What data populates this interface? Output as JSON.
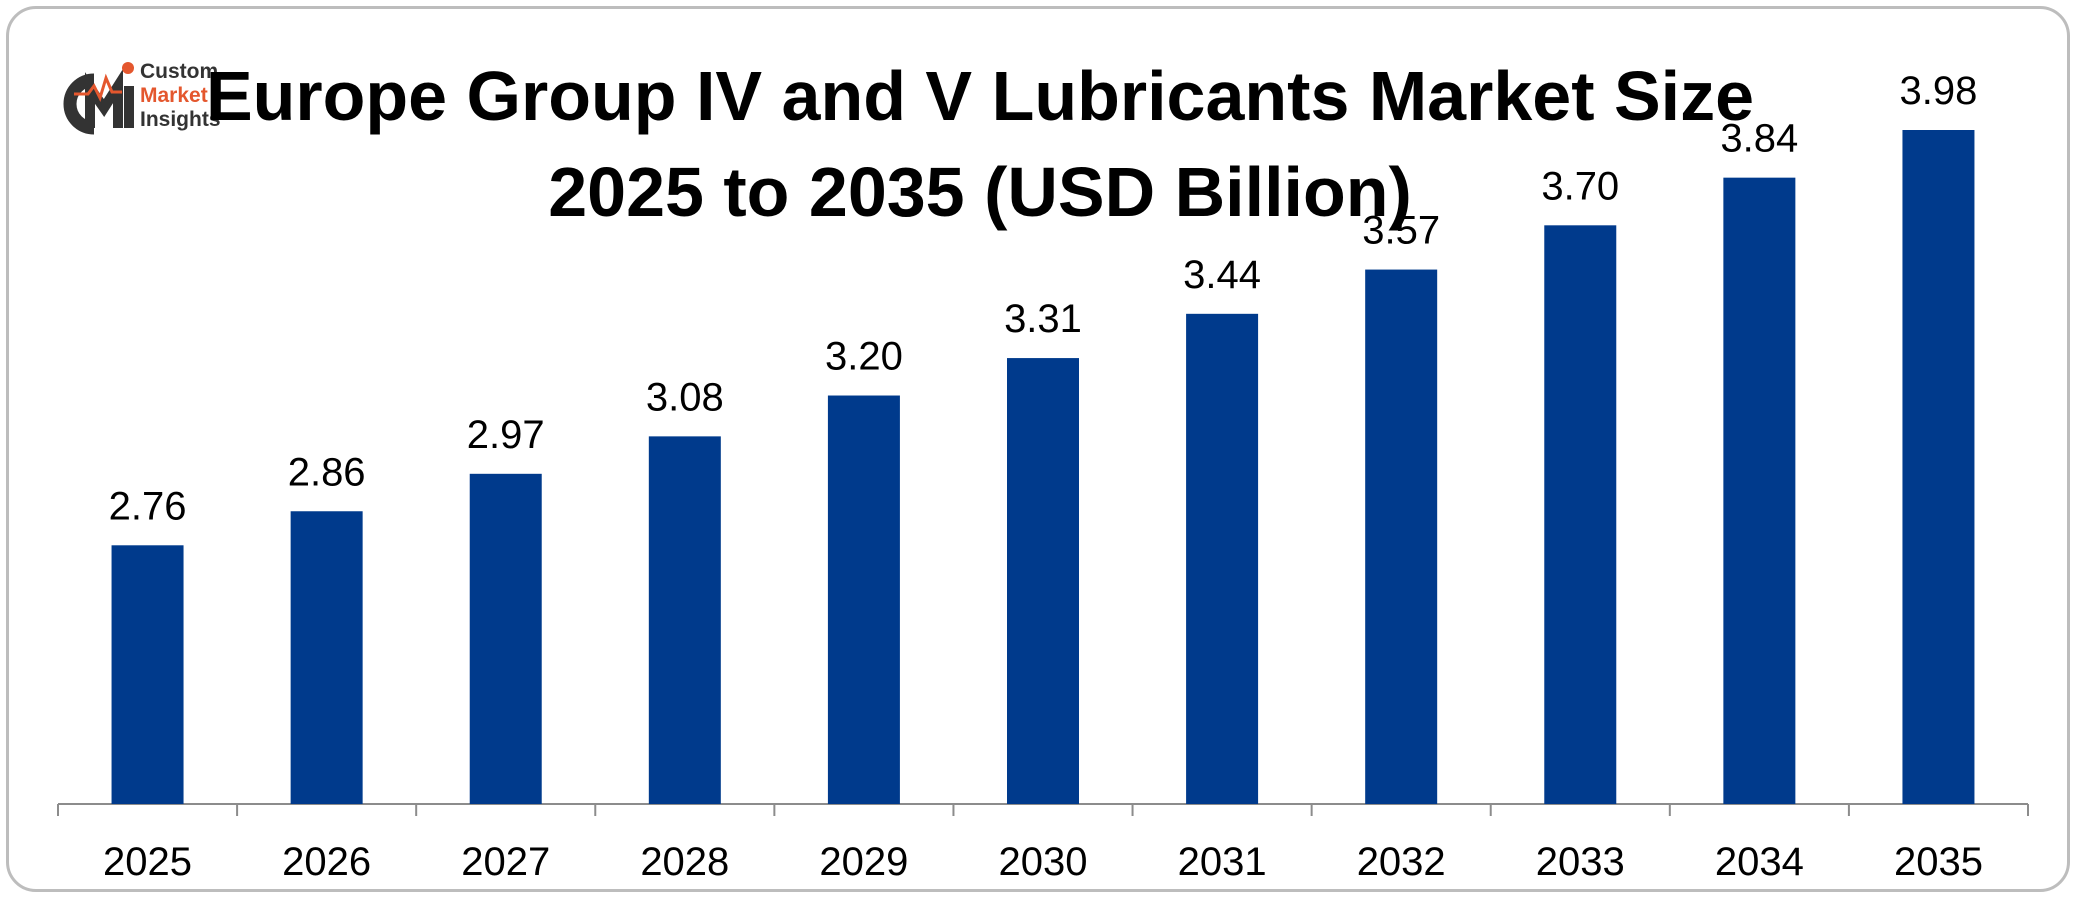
{
  "logo": {
    "mark": "CMI",
    "line1": "Custom",
    "line2": "Market",
    "line3": "Insights"
  },
  "colors": {
    "bar": "#003a8c",
    "axis": "#8c8c8c",
    "logo_dark": "#333333",
    "logo_accent": "#e4572e"
  },
  "chart_data": {
    "type": "bar",
    "title_line1": "Europe Group IV and V Lubricants Market Size",
    "title_line2": "2025 to 2035 (USD Billion)",
    "categories": [
      "2025",
      "2026",
      "2027",
      "2028",
      "2029",
      "2030",
      "2031",
      "2032",
      "2033",
      "2034",
      "2035"
    ],
    "values": [
      2.76,
      2.86,
      2.97,
      3.08,
      3.2,
      3.31,
      3.44,
      3.57,
      3.7,
      3.84,
      3.98
    ],
    "value_labels": [
      "2.76",
      "2.86",
      "2.97",
      "3.08",
      "3.20",
      "3.31",
      "3.44",
      "3.57",
      "3.70",
      "3.84",
      "3.98"
    ],
    "ylim": [
      2.0,
      4.0
    ],
    "grid": false,
    "legend": "none"
  }
}
